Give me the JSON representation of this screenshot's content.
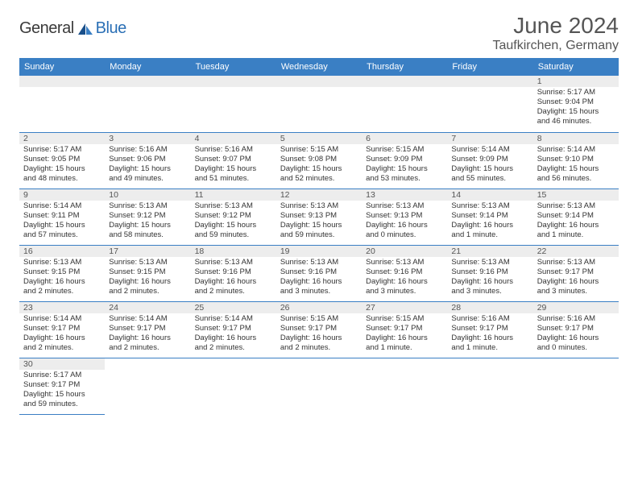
{
  "brand": {
    "general": "General",
    "blue": "Blue"
  },
  "title": {
    "month": "June 2024",
    "location": "Taufkirchen, Germany"
  },
  "colors": {
    "header_bg": "#3a7fc4",
    "header_text": "#ffffff",
    "daynum_bg": "#ededed",
    "cell_border": "#3a7fc4",
    "text": "#333333",
    "logo_blue": "#2a6fb5"
  },
  "weekdays": [
    "Sunday",
    "Monday",
    "Tuesday",
    "Wednesday",
    "Thursday",
    "Friday",
    "Saturday"
  ],
  "days": {
    "1": {
      "sunrise": "Sunrise: 5:17 AM",
      "sunset": "Sunset: 9:04 PM",
      "daylight1": "Daylight: 15 hours",
      "daylight2": "and 46 minutes."
    },
    "2": {
      "sunrise": "Sunrise: 5:17 AM",
      "sunset": "Sunset: 9:05 PM",
      "daylight1": "Daylight: 15 hours",
      "daylight2": "and 48 minutes."
    },
    "3": {
      "sunrise": "Sunrise: 5:16 AM",
      "sunset": "Sunset: 9:06 PM",
      "daylight1": "Daylight: 15 hours",
      "daylight2": "and 49 minutes."
    },
    "4": {
      "sunrise": "Sunrise: 5:16 AM",
      "sunset": "Sunset: 9:07 PM",
      "daylight1": "Daylight: 15 hours",
      "daylight2": "and 51 minutes."
    },
    "5": {
      "sunrise": "Sunrise: 5:15 AM",
      "sunset": "Sunset: 9:08 PM",
      "daylight1": "Daylight: 15 hours",
      "daylight2": "and 52 minutes."
    },
    "6": {
      "sunrise": "Sunrise: 5:15 AM",
      "sunset": "Sunset: 9:09 PM",
      "daylight1": "Daylight: 15 hours",
      "daylight2": "and 53 minutes."
    },
    "7": {
      "sunrise": "Sunrise: 5:14 AM",
      "sunset": "Sunset: 9:09 PM",
      "daylight1": "Daylight: 15 hours",
      "daylight2": "and 55 minutes."
    },
    "8": {
      "sunrise": "Sunrise: 5:14 AM",
      "sunset": "Sunset: 9:10 PM",
      "daylight1": "Daylight: 15 hours",
      "daylight2": "and 56 minutes."
    },
    "9": {
      "sunrise": "Sunrise: 5:14 AM",
      "sunset": "Sunset: 9:11 PM",
      "daylight1": "Daylight: 15 hours",
      "daylight2": "and 57 minutes."
    },
    "10": {
      "sunrise": "Sunrise: 5:13 AM",
      "sunset": "Sunset: 9:12 PM",
      "daylight1": "Daylight: 15 hours",
      "daylight2": "and 58 minutes."
    },
    "11": {
      "sunrise": "Sunrise: 5:13 AM",
      "sunset": "Sunset: 9:12 PM",
      "daylight1": "Daylight: 15 hours",
      "daylight2": "and 59 minutes."
    },
    "12": {
      "sunrise": "Sunrise: 5:13 AM",
      "sunset": "Sunset: 9:13 PM",
      "daylight1": "Daylight: 15 hours",
      "daylight2": "and 59 minutes."
    },
    "13": {
      "sunrise": "Sunrise: 5:13 AM",
      "sunset": "Sunset: 9:13 PM",
      "daylight1": "Daylight: 16 hours",
      "daylight2": "and 0 minutes."
    },
    "14": {
      "sunrise": "Sunrise: 5:13 AM",
      "sunset": "Sunset: 9:14 PM",
      "daylight1": "Daylight: 16 hours",
      "daylight2": "and 1 minute."
    },
    "15": {
      "sunrise": "Sunrise: 5:13 AM",
      "sunset": "Sunset: 9:14 PM",
      "daylight1": "Daylight: 16 hours",
      "daylight2": "and 1 minute."
    },
    "16": {
      "sunrise": "Sunrise: 5:13 AM",
      "sunset": "Sunset: 9:15 PM",
      "daylight1": "Daylight: 16 hours",
      "daylight2": "and 2 minutes."
    },
    "17": {
      "sunrise": "Sunrise: 5:13 AM",
      "sunset": "Sunset: 9:15 PM",
      "daylight1": "Daylight: 16 hours",
      "daylight2": "and 2 minutes."
    },
    "18": {
      "sunrise": "Sunrise: 5:13 AM",
      "sunset": "Sunset: 9:16 PM",
      "daylight1": "Daylight: 16 hours",
      "daylight2": "and 2 minutes."
    },
    "19": {
      "sunrise": "Sunrise: 5:13 AM",
      "sunset": "Sunset: 9:16 PM",
      "daylight1": "Daylight: 16 hours",
      "daylight2": "and 3 minutes."
    },
    "20": {
      "sunrise": "Sunrise: 5:13 AM",
      "sunset": "Sunset: 9:16 PM",
      "daylight1": "Daylight: 16 hours",
      "daylight2": "and 3 minutes."
    },
    "21": {
      "sunrise": "Sunrise: 5:13 AM",
      "sunset": "Sunset: 9:16 PM",
      "daylight1": "Daylight: 16 hours",
      "daylight2": "and 3 minutes."
    },
    "22": {
      "sunrise": "Sunrise: 5:13 AM",
      "sunset": "Sunset: 9:17 PM",
      "daylight1": "Daylight: 16 hours",
      "daylight2": "and 3 minutes."
    },
    "23": {
      "sunrise": "Sunrise: 5:14 AM",
      "sunset": "Sunset: 9:17 PM",
      "daylight1": "Daylight: 16 hours",
      "daylight2": "and 2 minutes."
    },
    "24": {
      "sunrise": "Sunrise: 5:14 AM",
      "sunset": "Sunset: 9:17 PM",
      "daylight1": "Daylight: 16 hours",
      "daylight2": "and 2 minutes."
    },
    "25": {
      "sunrise": "Sunrise: 5:14 AM",
      "sunset": "Sunset: 9:17 PM",
      "daylight1": "Daylight: 16 hours",
      "daylight2": "and 2 minutes."
    },
    "26": {
      "sunrise": "Sunrise: 5:15 AM",
      "sunset": "Sunset: 9:17 PM",
      "daylight1": "Daylight: 16 hours",
      "daylight2": "and 2 minutes."
    },
    "27": {
      "sunrise": "Sunrise: 5:15 AM",
      "sunset": "Sunset: 9:17 PM",
      "daylight1": "Daylight: 16 hours",
      "daylight2": "and 1 minute."
    },
    "28": {
      "sunrise": "Sunrise: 5:16 AM",
      "sunset": "Sunset: 9:17 PM",
      "daylight1": "Daylight: 16 hours",
      "daylight2": "and 1 minute."
    },
    "29": {
      "sunrise": "Sunrise: 5:16 AM",
      "sunset": "Sunset: 9:17 PM",
      "daylight1": "Daylight: 16 hours",
      "daylight2": "and 0 minutes."
    },
    "30": {
      "sunrise": "Sunrise: 5:17 AM",
      "sunset": "Sunset: 9:17 PM",
      "daylight1": "Daylight: 15 hours",
      "daylight2": "and 59 minutes."
    }
  },
  "layout": {
    "weeks": [
      [
        null,
        null,
        null,
        null,
        null,
        null,
        "1"
      ],
      [
        "2",
        "3",
        "4",
        "5",
        "6",
        "7",
        "8"
      ],
      [
        "9",
        "10",
        "11",
        "12",
        "13",
        "14",
        "15"
      ],
      [
        "16",
        "17",
        "18",
        "19",
        "20",
        "21",
        "22"
      ],
      [
        "23",
        "24",
        "25",
        "26",
        "27",
        "28",
        "29"
      ],
      [
        "30",
        null,
        null,
        null,
        null,
        null,
        null
      ]
    ]
  }
}
